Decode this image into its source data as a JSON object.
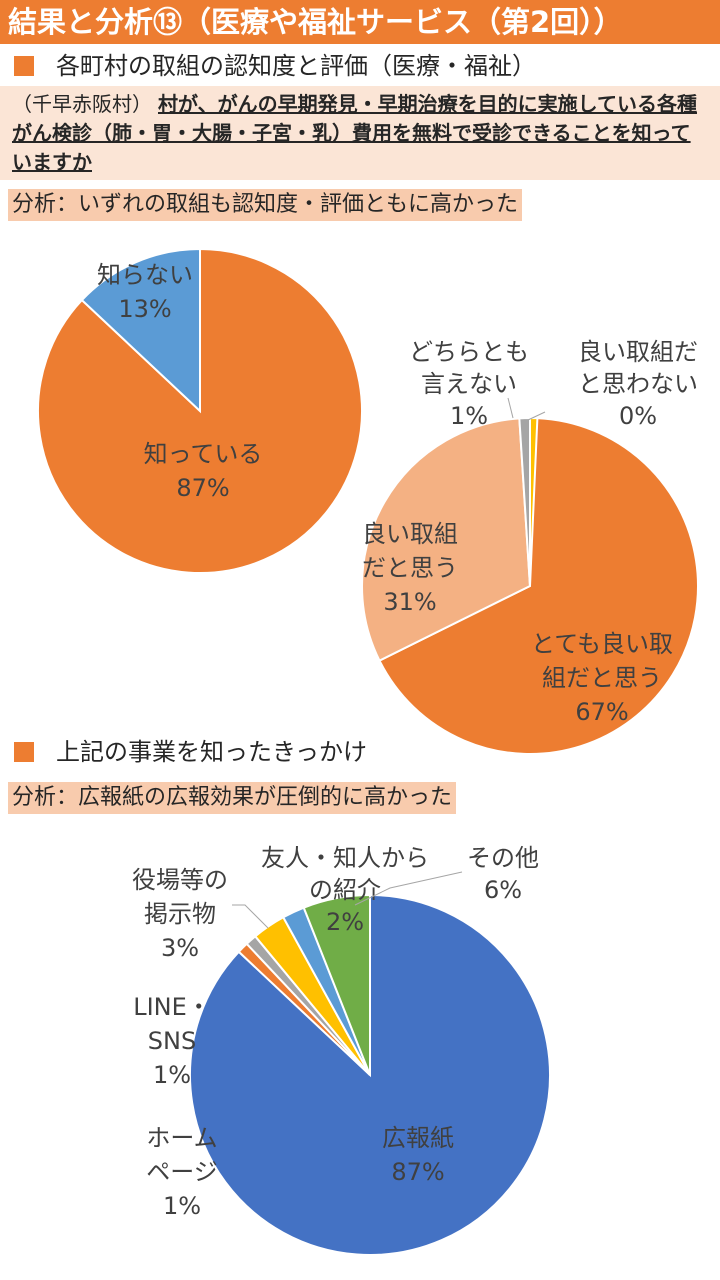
{
  "title": "結果と分析⑬（医療や福祉サービス（第2回））",
  "section1": {
    "heading": "各町村の取組の認知度と評価（医療・福祉）",
    "question_prefix": "（千早赤阪村）",
    "question": "村が、がんの早期発見・早期治療を目的に実施している各種がん検診（肺・胃・大腸・子宮・乳）費用を無料で受診できることを知っていますか",
    "analysis": "分析：いずれの取組も認知度・評価ともに高かった"
  },
  "section2": {
    "heading": "上記の事業を知ったきっかけ",
    "analysis": "分析：広報紙の広報効果が圧倒的に高かった"
  },
  "colors": {
    "orange": "#ED7D31",
    "light_orange": "#F4B183",
    "blue": "#5B9BD5",
    "dark_blue": "#4472C4",
    "gray": "#A5A5A5",
    "yellow": "#FFC000",
    "green": "#70AD47"
  },
  "chart_data": [
    {
      "type": "pie",
      "title": "認知度",
      "slices": [
        {
          "label": "知っている",
          "value": 87,
          "color": "#ED7D31"
        },
        {
          "label": "知らない",
          "value": 13,
          "color": "#5B9BD5"
        }
      ]
    },
    {
      "type": "pie",
      "title": "評価",
      "slices": [
        {
          "label": "とても良い取組だと思う",
          "value": 67,
          "color": "#ED7D31"
        },
        {
          "label": "良い取組だと思う",
          "value": 31,
          "color": "#F4B183"
        },
        {
          "label": "どちらとも言えない",
          "value": 1,
          "color": "#A5A5A5"
        },
        {
          "label": "良い取組だと思わない",
          "value": 0,
          "color": "#FFC000"
        }
      ]
    },
    {
      "type": "pie",
      "title": "知ったきっかけ",
      "slices": [
        {
          "label": "広報紙",
          "value": 87,
          "color": "#4472C4"
        },
        {
          "label": "ホームページ",
          "value": 1,
          "color": "#ED7D31"
        },
        {
          "label": "LINE・SNS",
          "value": 1,
          "color": "#A5A5A5"
        },
        {
          "label": "役場等の掲示物",
          "value": 3,
          "color": "#FFC000"
        },
        {
          "label": "友人・知人からの紹介",
          "value": 2,
          "color": "#5B9BD5"
        },
        {
          "label": "その他",
          "value": 6,
          "color": "#70AD47"
        }
      ]
    }
  ],
  "labels": {
    "pie1": [
      {
        "lines": [
          "知っている"
        ],
        "pct": "87%"
      },
      {
        "lines": [
          "知らない"
        ],
        "pct": "13%"
      }
    ],
    "pie2": [
      {
        "lines": [
          "とても良い取",
          "組だと思う"
        ],
        "pct": "67%"
      },
      {
        "lines": [
          "良い取組",
          "だと思う"
        ],
        "pct": "31%"
      },
      {
        "lines": [
          "どちらとも",
          "言えない"
        ],
        "pct": "1%"
      },
      {
        "lines": [
          "良い取組だ",
          "と思わない"
        ],
        "pct": "0%"
      }
    ],
    "pie3": [
      {
        "lines": [
          "広報紙"
        ],
        "pct": "87%"
      },
      {
        "lines": [
          "ホーム",
          "ページ"
        ],
        "pct": "1%"
      },
      {
        "lines": [
          "LINE・",
          "SNS"
        ],
        "pct": "1%"
      },
      {
        "lines": [
          "役場等の",
          "掲示物"
        ],
        "pct": "3%"
      },
      {
        "lines": [
          "友人・知人から",
          "の紹介"
        ],
        "pct": "2%"
      },
      {
        "lines": [
          "その他"
        ],
        "pct": "6%"
      }
    ]
  }
}
